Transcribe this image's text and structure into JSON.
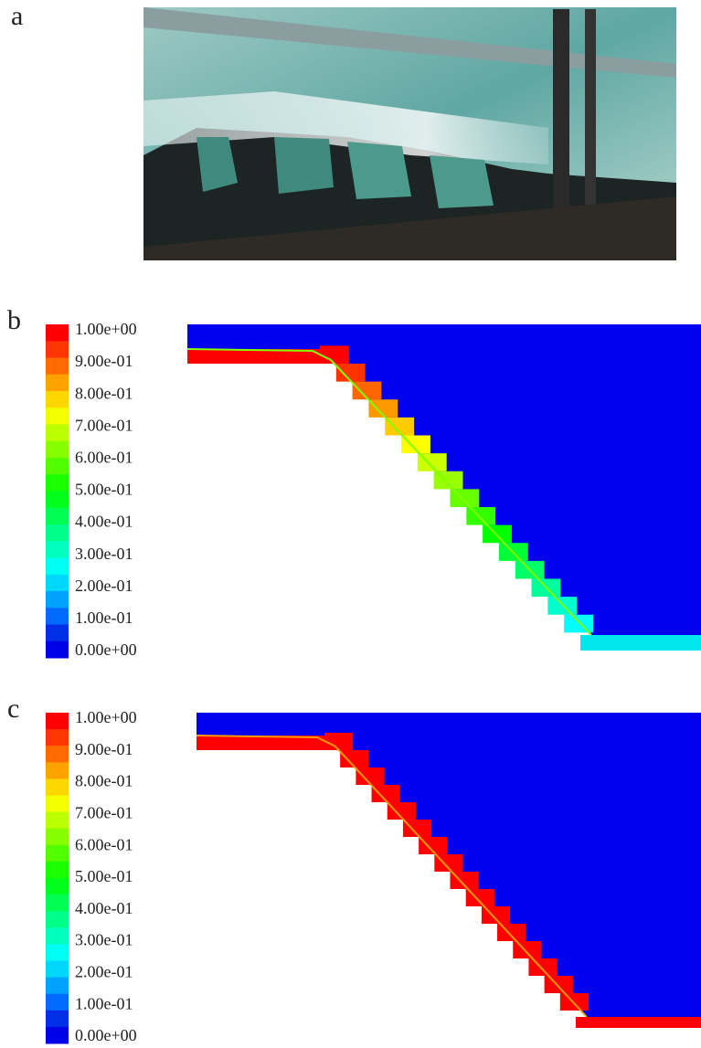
{
  "panels": [
    {
      "label": "a"
    },
    {
      "label": "b",
      "colorbar": [
        "1.00e+00",
        "9.00e-01",
        "8.00e-01",
        "7.00e-01",
        "6.00e-01",
        "5.00e-01",
        "4.00e-01",
        "3.00e-01",
        "2.00e-01",
        "1.00e-01",
        "0.00e+00"
      ]
    },
    {
      "label": "c",
      "colorbar": [
        "1.00e+00",
        "9.00e-01",
        "8.00e-01",
        "7.00e-01",
        "6.00e-01",
        "5.00e-01",
        "4.00e-01",
        "3.00e-01",
        "2.00e-01",
        "1.00e-01",
        "0.00e+00"
      ]
    }
  ]
}
